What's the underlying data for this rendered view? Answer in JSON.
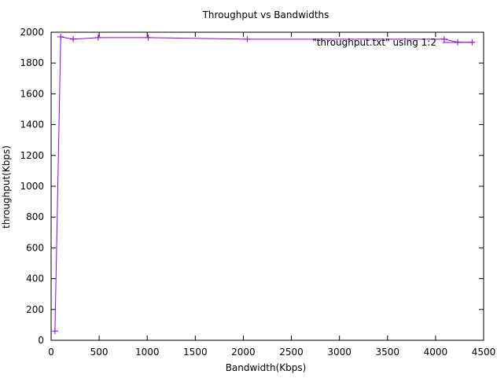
{
  "chart_data": {
    "type": "line",
    "title": "Throughput vs Bandwidths",
    "xlabel": "Bandwidth(Kbps)",
    "ylabel": "throughput(Kbps)",
    "xlim": [
      0,
      4500
    ],
    "ylim": [
      0,
      2000
    ],
    "xticks": [
      0,
      500,
      1000,
      1500,
      2000,
      2500,
      3000,
      3500,
      4000,
      4500
    ],
    "yticks": [
      0,
      200,
      400,
      600,
      800,
      1000,
      1200,
      1400,
      1600,
      1800,
      2000
    ],
    "grid": false,
    "legend_position": "top-right",
    "series": [
      {
        "name": "\"throughput.txt\" using 1:2",
        "color": "#9400d3",
        "marker": "plus",
        "x": [
          40,
          100,
          230,
          490,
          1010,
          2040,
          4090,
          4230,
          4380
        ],
        "y": [
          60,
          1970,
          1955,
          1965,
          1965,
          1955,
          1955,
          1935,
          1935
        ]
      }
    ]
  }
}
